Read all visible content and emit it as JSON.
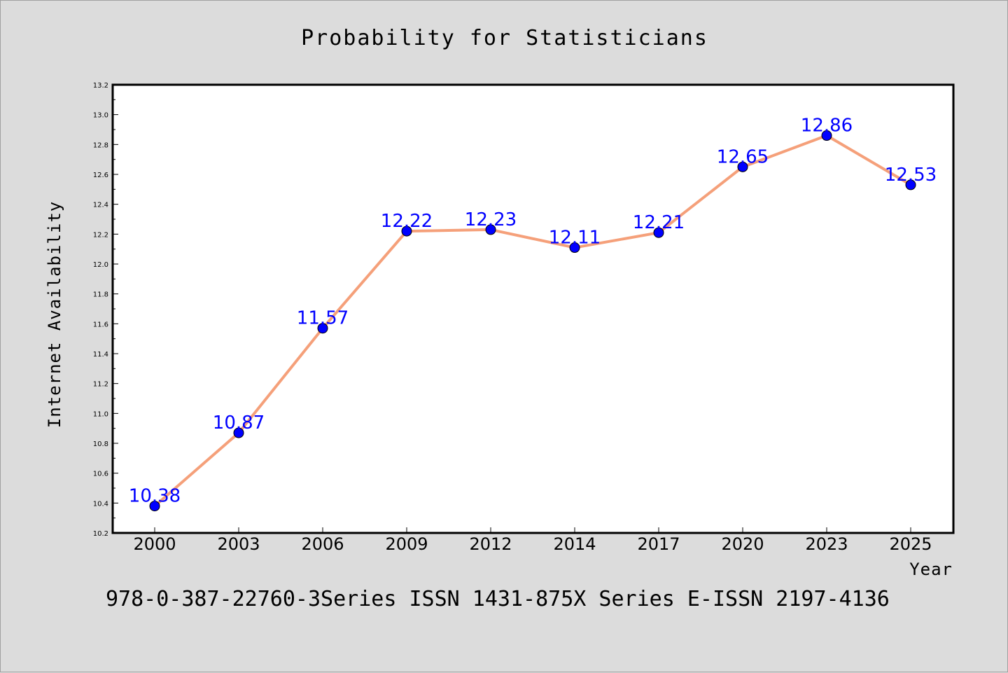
{
  "chart_data": {
    "type": "line",
    "title": "Probability for Statisticians",
    "xlabel": "Year",
    "ylabel": "Internet Availability",
    "categories": [
      "2000",
      "2003",
      "2006",
      "2009",
      "2012",
      "2014",
      "2017",
      "2020",
      "2023",
      "2025"
    ],
    "series": [
      {
        "values": [
          10.38,
          10.87,
          11.57,
          12.22,
          12.23,
          12.11,
          12.21,
          12.65,
          12.86,
          12.53
        ],
        "labels": [
          "10.38",
          "10.87",
          "11.57",
          "12.22",
          "12.23",
          "12.11",
          "12.21",
          "12.65",
          "12.86",
          "12.53"
        ],
        "line_color": "#f5a07a",
        "marker_color": "#0000ff"
      }
    ],
    "ylim": [
      10.2,
      13.2
    ],
    "yticks": [
      "10.2",
      "10.4",
      "10.6",
      "10.8",
      "11.0",
      "11.2",
      "11.4",
      "11.6",
      "11.8",
      "12.0",
      "12.2",
      "12.4",
      "12.6",
      "12.8",
      "13.0",
      "13.2"
    ],
    "grid": false,
    "legend": "none"
  },
  "footer": "978-0-387-22760-3Series ISSN 1431-875X Series E-ISSN 2197-4136"
}
